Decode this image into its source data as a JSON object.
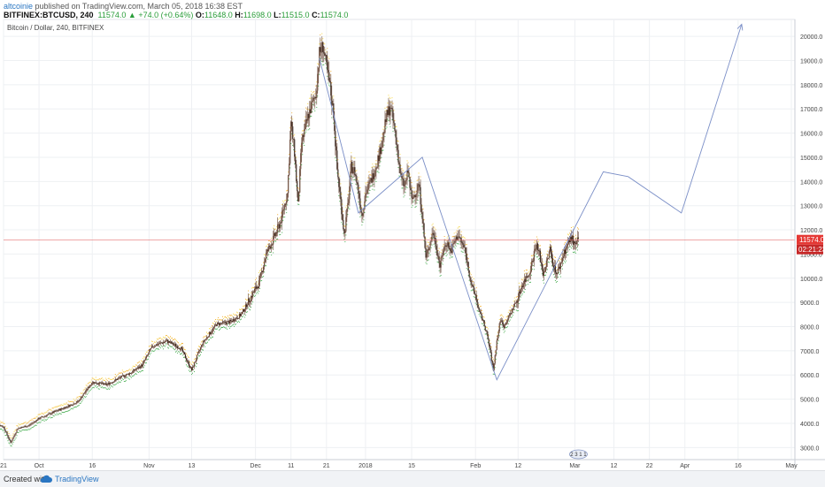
{
  "header": {
    "author": "altcoinie",
    "published": "published on TradingView.com, March 05, 2018 16:38 EST",
    "symbol": "BITFINEX:BTCUSD, 240",
    "last": "11574.0",
    "change": "▲ +74.0 (+0.64%)",
    "o_label": "O:",
    "o_value": "11648.0",
    "h_label": "H:",
    "h_value": "11698.0",
    "l_label": "L:",
    "l_value": "11515.0",
    "c_label": "C:",
    "c_value": "11574.0"
  },
  "chart_title": "Bitcoin / Dollar, 240, BITFINEX",
  "footer": {
    "created_with": "Created with",
    "brand": "TradingView"
  },
  "badge": {
    "text": "2 3 1 1"
  },
  "price_label": {
    "price": "11574.0",
    "timer": "02:21:23"
  },
  "colors": {
    "up": "#f2a81d",
    "up2": "#f5d33b",
    "down": "#3aa845",
    "candle": "#6b4a3a",
    "drawing": "#7b8fc7",
    "price_line": "#e57373",
    "grid": "#eef0f3"
  },
  "chart_data": {
    "type": "candlestick",
    "title": "Bitcoin / Dollar, 240, BITFINEX",
    "ylim": [
      2500,
      20700
    ],
    "y_ticks": [
      3000,
      4000,
      5000,
      6000,
      7000,
      8000,
      9000,
      10000,
      11000,
      12000,
      13000,
      14000,
      15000,
      16000,
      17000,
      18000,
      19000,
      20000
    ],
    "y_tick_labels": [
      "3000.0",
      "4000.0",
      "5000.0",
      "6000.0",
      "7000.0",
      "8000.0",
      "9000.0",
      "10000.0",
      "11000.0",
      "12000.0",
      "13000.0",
      "14000.0",
      "15000.0",
      "16000.0",
      "17000.0",
      "18000.0",
      "19000.0",
      "20000.0"
    ],
    "x_range": [
      0,
      223
    ],
    "x_ticks": [
      {
        "day": 0,
        "label": "21"
      },
      {
        "day": 10,
        "label": "Oct"
      },
      {
        "day": 25,
        "label": "16"
      },
      {
        "day": 41,
        "label": "Nov"
      },
      {
        "day": 53,
        "label": "13"
      },
      {
        "day": 71,
        "label": "Dec"
      },
      {
        "day": 81,
        "label": "11"
      },
      {
        "day": 91,
        "label": "21"
      },
      {
        "day": 102,
        "label": "2018"
      },
      {
        "day": 115,
        "label": "15"
      },
      {
        "day": 133,
        "label": "Feb"
      },
      {
        "day": 145,
        "label": "12"
      },
      {
        "day": 161,
        "label": "Mar"
      },
      {
        "day": 172,
        "label": "12"
      },
      {
        "day": 182,
        "label": "22"
      },
      {
        "day": 192,
        "label": "Apr"
      },
      {
        "day": 207,
        "label": "16"
      },
      {
        "day": 222,
        "label": "May"
      }
    ],
    "price_path": [
      [
        -3,
        4050
      ],
      [
        0,
        3850
      ],
      [
        2,
        3200
      ],
      [
        4,
        3800
      ],
      [
        7,
        3900
      ],
      [
        10,
        4200
      ],
      [
        14,
        4450
      ],
      [
        18,
        4700
      ],
      [
        21,
        4900
      ],
      [
        25,
        5700
      ],
      [
        29,
        5600
      ],
      [
        33,
        5900
      ],
      [
        36,
        6100
      ],
      [
        39,
        6400
      ],
      [
        42,
        7200
      ],
      [
        46,
        7400
      ],
      [
        50,
        7100
      ],
      [
        53,
        6200
      ],
      [
        56,
        7300
      ],
      [
        60,
        8100
      ],
      [
        64,
        8200
      ],
      [
        67,
        8500
      ],
      [
        70,
        9300
      ],
      [
        72,
        9800
      ],
      [
        74,
        11000
      ],
      [
        76,
        11600
      ],
      [
        78,
        12300
      ],
      [
        80,
        13500
      ],
      [
        81,
        16400
      ],
      [
        82,
        15200
      ],
      [
        83,
        13000
      ],
      [
        84,
        15600
      ],
      [
        86,
        16800
      ],
      [
        88,
        17600
      ],
      [
        89,
        19300
      ],
      [
        90,
        19600
      ],
      [
        91,
        18700
      ],
      [
        92,
        17900
      ],
      [
        93,
        16800
      ],
      [
        94,
        14500
      ],
      [
        95,
        13200
      ],
      [
        96,
        11800
      ],
      [
        97,
        13000
      ],
      [
        98,
        14600
      ],
      [
        99,
        14400
      ],
      [
        100,
        13600
      ],
      [
        101,
        12600
      ],
      [
        102,
        13500
      ],
      [
        104,
        14200
      ],
      [
        106,
        15200
      ],
      [
        108,
        16700
      ],
      [
        109,
        17100
      ],
      [
        110,
        16300
      ],
      [
        111,
        15300
      ],
      [
        112,
        14100
      ],
      [
        113,
        13800
      ],
      [
        114,
        14400
      ],
      [
        115,
        13200
      ],
      [
        117,
        13900
      ],
      [
        118,
        12600
      ],
      [
        119,
        10800
      ],
      [
        120,
        11400
      ],
      [
        121,
        11900
      ],
      [
        122,
        11300
      ],
      [
        123,
        10500
      ],
      [
        124,
        11200
      ],
      [
        125,
        11500
      ],
      [
        126,
        11100
      ],
      [
        128,
        11800
      ],
      [
        130,
        11200
      ],
      [
        131,
        10400
      ],
      [
        132,
        9600
      ],
      [
        133,
        9300
      ],
      [
        134,
        8600
      ],
      [
        135,
        8300
      ],
      [
        136,
        7800
      ],
      [
        137,
        7100
      ],
      [
        138,
        6200
      ],
      [
        139,
        7400
      ],
      [
        140,
        8300
      ],
      [
        141,
        8000
      ],
      [
        143,
        8600
      ],
      [
        145,
        9200
      ],
      [
        146,
        9700
      ],
      [
        148,
        10200
      ],
      [
        149,
        10700
      ],
      [
        150,
        11400
      ],
      [
        151,
        11000
      ],
      [
        152,
        10200
      ],
      [
        153,
        10600
      ],
      [
        154,
        11200
      ],
      [
        155,
        10500
      ],
      [
        156,
        10200
      ],
      [
        157,
        10600
      ],
      [
        158,
        11100
      ],
      [
        159,
        11400
      ],
      [
        160,
        11700
      ],
      [
        161,
        11300
      ],
      [
        162,
        11574
      ]
    ],
    "drawing": [
      [
        89,
        19100
      ],
      [
        100,
        12700
      ],
      [
        118,
        15000
      ],
      [
        139,
        5800
      ],
      [
        169,
        14400
      ],
      [
        176,
        14200
      ],
      [
        191,
        12700
      ],
      [
        208,
        20500
      ]
    ],
    "last_price": 11574.0
  }
}
